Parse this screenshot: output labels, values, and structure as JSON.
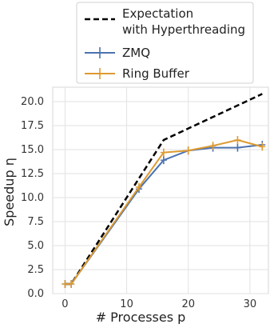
{
  "chart_data": {
    "type": "line",
    "xlabel": "# Processes p",
    "ylabel": "Speedup η",
    "xlim": [
      -2,
      33
    ],
    "ylim": [
      0,
      21.5
    ],
    "x_ticks": [
      "0",
      "10",
      "20",
      "30"
    ],
    "y_ticks": [
      "0.0",
      "2.5",
      "5.0",
      "7.5",
      "10.0",
      "12.5",
      "15.0",
      "17.5",
      "20.0"
    ],
    "grid": true,
    "legend_position": "top",
    "series": [
      {
        "name": "Expectation\nwith Hyperthreading",
        "style": "dashed",
        "color": "#000000",
        "x": [
          0,
          1,
          16,
          32
        ],
        "y": [
          1.0,
          1.0,
          16.0,
          20.8
        ]
      },
      {
        "name": "ZMQ",
        "style": "solid",
        "color": "#4c72b0",
        "error_bars": true,
        "x": [
          0,
          1,
          12,
          16,
          20,
          24,
          28,
          32
        ],
        "y": [
          1.0,
          1.0,
          10.9,
          13.9,
          14.9,
          15.2,
          15.2,
          15.5
        ]
      },
      {
        "name": "Ring Buffer",
        "style": "solid",
        "color": "#dd9a31",
        "error_bars": true,
        "x": [
          0,
          1,
          12,
          16,
          20,
          24,
          28,
          32
        ],
        "y": [
          1.0,
          1.0,
          11.1,
          14.7,
          14.9,
          15.4,
          16.0,
          15.3
        ]
      }
    ]
  }
}
